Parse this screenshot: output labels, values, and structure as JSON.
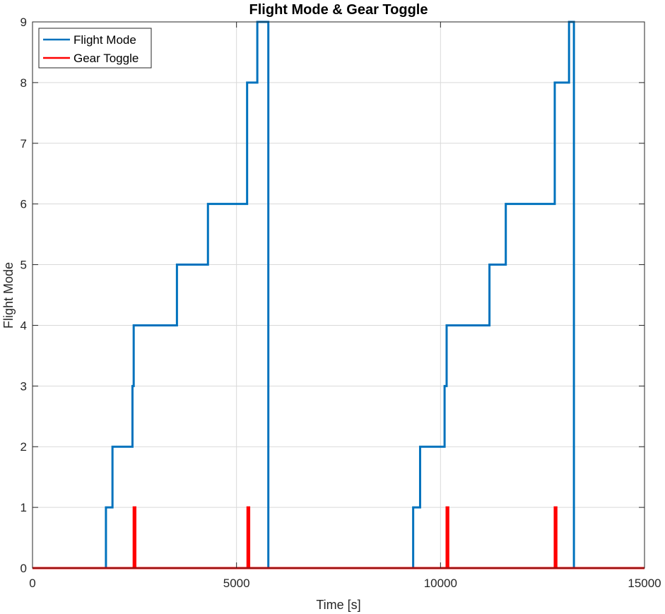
{
  "chart_data": {
    "type": "line",
    "title": "Flight Mode & Gear Toggle",
    "xlabel": "Time [s]",
    "ylabel": "Flight Mode",
    "xlim": [
      0,
      15000
    ],
    "ylim": [
      0,
      9
    ],
    "xticks": [
      0,
      5000,
      10000,
      15000
    ],
    "xtick_labels": [
      "0",
      "5000",
      "10000",
      "15000"
    ],
    "yticks": [
      0,
      1,
      2,
      3,
      4,
      5,
      6,
      7,
      8,
      9
    ],
    "ytick_labels": [
      "0",
      "1",
      "2",
      "3",
      "4",
      "5",
      "6",
      "7",
      "8",
      "9"
    ],
    "grid": true,
    "legend_position": "top-left",
    "series": [
      {
        "name": "Flight Mode",
        "color": "#0072BD",
        "step": true,
        "x": [
          0,
          1800,
          1960,
          2450,
          2480,
          2530,
          3540,
          4300,
          5260,
          5510,
          5780,
          9330,
          9500,
          10100,
          10150,
          10200,
          11200,
          11600,
          12800,
          13150,
          13270,
          15000
        ],
        "y": [
          0,
          1,
          2,
          3,
          4,
          4,
          5,
          6,
          8,
          9,
          0,
          1,
          2,
          3,
          4,
          4,
          5,
          6,
          8,
          9,
          0,
          0
        ]
      },
      {
        "name": "Gear Toggle",
        "color": "#FF0000",
        "step": true,
        "x": [
          0,
          2480,
          2520,
          5270,
          5310,
          10150,
          10190,
          12800,
          12840,
          15000
        ],
        "y": [
          0,
          1,
          0,
          1,
          0,
          1,
          0,
          1,
          0,
          0
        ]
      }
    ]
  }
}
